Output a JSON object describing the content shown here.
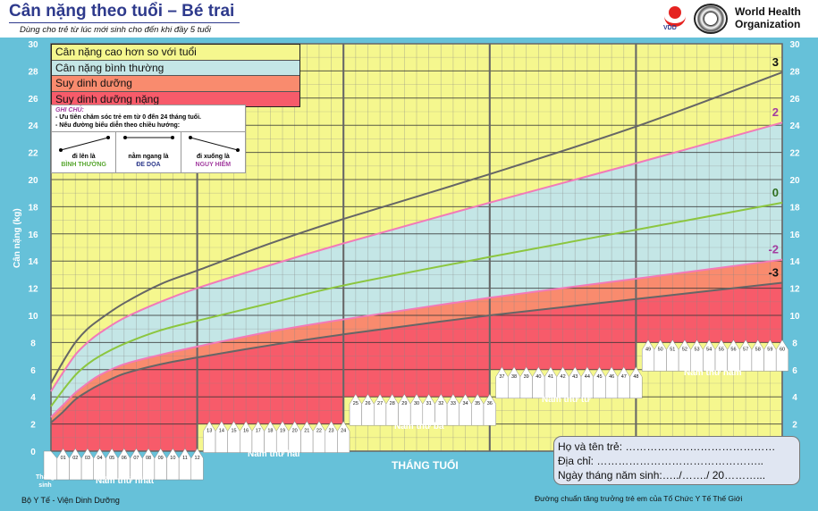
{
  "header": {
    "title": "Cân nặng theo tuổi – Bé trai",
    "subtitle": "Dùng cho trẻ từ lúc mới sinh cho đến khi đầy 5 tuổi",
    "logo_vdd": "VDD",
    "who_name_1": "World Health",
    "who_name_2": "Organization"
  },
  "legend": {
    "items": [
      {
        "label": "Cân nặng cao hơn so với tuổi",
        "color": "#f5f78e"
      },
      {
        "label": "Cân nặng bình thường",
        "color": "#c4e6e6"
      },
      {
        "label": "Suy dinh dưỡng",
        "color": "#f98b6e"
      },
      {
        "label": "Suy dinh dưỡng nặng",
        "color": "#f75b6a"
      }
    ]
  },
  "note": {
    "title": "GHI CHÚ:",
    "line1": "- Ưu tiên chăm sóc trẻ em từ 0 đến 24 tháng tuổi.",
    "line2": "- Nếu đường biểu diễn theo chiều hướng:",
    "cells": [
      {
        "text": "đi lên là",
        "status": "BÌNH THƯỜNG",
        "color": "#5aa832"
      },
      {
        "text": "nằm ngang là",
        "status": "ĐE DỌA",
        "color": "#2e3a8c"
      },
      {
        "text": "đi xuống là",
        "status": "NGUY HIỂM",
        "color": "#a33da0"
      }
    ]
  },
  "chart_data": {
    "type": "line",
    "title": "Cân nặng theo tuổi – Bé trai",
    "xlabel": "THÁNG TUỔI",
    "ylabel": "Cân nặng (kg)",
    "xlim": [
      0,
      60
    ],
    "ylim": [
      0,
      30
    ],
    "yticks": [
      0,
      2,
      4,
      6,
      8,
      10,
      12,
      14,
      16,
      18,
      20,
      22,
      24,
      26,
      28,
      30
    ],
    "x": [
      0,
      1,
      2,
      3,
      4,
      6,
      9,
      12,
      18,
      24,
      36,
      48,
      60
    ],
    "series": [
      {
        "name": "3",
        "color": "#666666",
        "label_color": "#111111",
        "values": [
          5.0,
          6.6,
          8.0,
          9.0,
          9.7,
          10.9,
          12.3,
          13.3,
          15.3,
          17.1,
          20.4,
          23.9,
          27.9
        ]
      },
      {
        "name": "2",
        "color": "#f27ab8",
        "label_color": "#a33da0",
        "values": [
          4.4,
          5.8,
          7.1,
          8.0,
          8.7,
          9.8,
          11.0,
          12.0,
          13.7,
          15.3,
          18.3,
          21.2,
          24.2
        ]
      },
      {
        "name": "0",
        "color": "#8cc63f",
        "label_color": "#2f6e1e",
        "values": [
          3.3,
          4.5,
          5.6,
          6.4,
          7.0,
          7.9,
          8.9,
          9.6,
          10.9,
          12.2,
          14.3,
          16.3,
          18.3
        ]
      },
      {
        "name": "-2",
        "color": "#f27ab8",
        "label_color": "#a33da0",
        "values": [
          2.5,
          3.4,
          4.3,
          5.0,
          5.6,
          6.4,
          7.1,
          7.7,
          8.8,
          9.7,
          11.3,
          12.7,
          14.1
        ]
      },
      {
        "name": "-3",
        "color": "#666666",
        "label_color": "#111111",
        "values": [
          2.1,
          2.9,
          3.8,
          4.4,
          4.9,
          5.7,
          6.4,
          6.9,
          7.8,
          8.6,
          10.0,
          11.2,
          12.4
        ]
      }
    ],
    "years": [
      "Năm thứ nhất",
      "Năm thứ hai",
      "Năm thứ ba",
      "Năm thứ tư",
      "Năm thứ năm"
    ],
    "birth_label_1": "Tháng",
    "birth_label_2": "sinh"
  },
  "form": {
    "name": "Họ và tên trẻ: ……………………………………",
    "address": "Địa chỉ: ………………………………………..",
    "dob": "Ngày tháng năm sinh:…../……./ 20………..."
  },
  "footer": {
    "left": "Bộ Y Tế - Viện Dinh Dưỡng",
    "right": "Đường chuẩn tăng trưởng trẻ em của Tổ Chức Y Tế Thế Giới"
  }
}
